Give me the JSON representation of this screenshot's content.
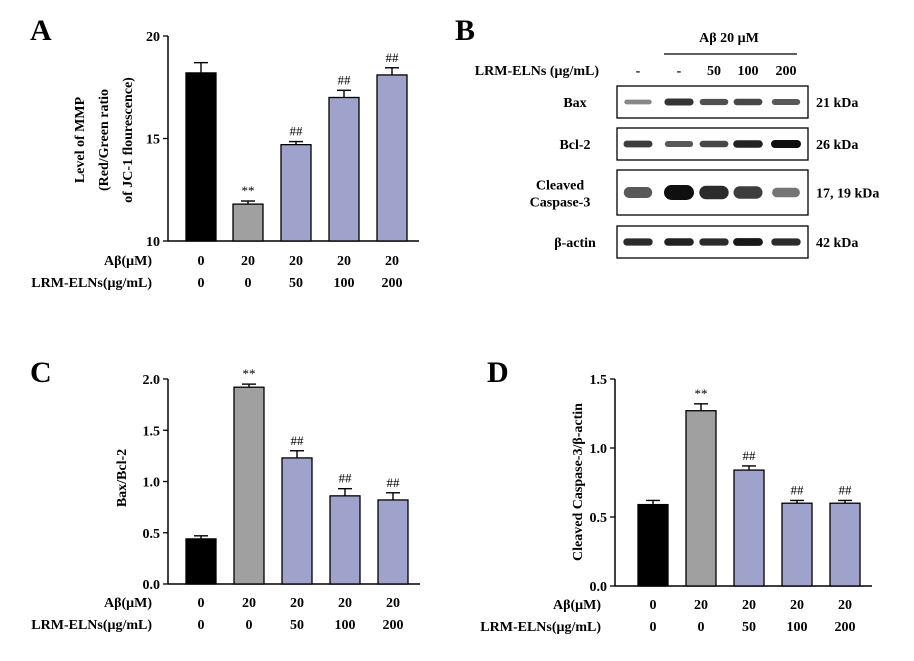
{
  "panels": {
    "A": {
      "letter": "A"
    },
    "B": {
      "letter": "B"
    },
    "C": {
      "letter": "C"
    },
    "D": {
      "letter": "D"
    }
  },
  "colors": {
    "control": "#000000",
    "abeta": "#a0a0a0",
    "treated": "#9fa3cc"
  },
  "row_labels": {
    "abeta": "Aβ(μM)",
    "elns": "LRM-ELNs(μg/mL)"
  },
  "blot": {
    "header": "Aβ 20 μM",
    "row_label": "LRM-ELNs (μg/mL)",
    "lanes": [
      "-",
      "-",
      "50",
      "100",
      "200"
    ],
    "rows": [
      {
        "name": "Bax",
        "size": "21 kDa",
        "intensity": [
          0.35,
          0.8,
          0.65,
          0.7,
          0.6
        ]
      },
      {
        "name": "Bcl-2",
        "size": "26 kDa",
        "intensity": [
          0.75,
          0.6,
          0.7,
          0.9,
          1.0
        ]
      },
      {
        "name": "Cleaved Caspase-3",
        "name_lines": [
          "Cleaved",
          "Caspase-3"
        ],
        "size": "17, 19 kDa",
        "intensity": [
          0.6,
          1.0,
          0.85,
          0.75,
          0.45
        ]
      },
      {
        "name": "β-actin",
        "size": "42 kDa",
        "intensity": [
          0.85,
          0.9,
          0.85,
          0.95,
          0.85
        ]
      }
    ]
  },
  "chart_data": [
    {
      "panel": "A",
      "type": "bar",
      "ylabel_lines": [
        "Level of MMP",
        "(Red/Green ratio",
        "of JC-1 flourescence)"
      ],
      "ylim": [
        10,
        20
      ],
      "yticks": [
        10,
        15,
        20
      ],
      "abeta": [
        "0",
        "20",
        "20",
        "20",
        "20"
      ],
      "elns": [
        "0",
        "0",
        "50",
        "100",
        "200"
      ],
      "values": [
        18.2,
        11.8,
        14.7,
        17.0,
        18.1
      ],
      "errors": [
        0.5,
        0.15,
        0.15,
        0.35,
        0.35
      ],
      "annotations": [
        "",
        "**",
        "##",
        "##",
        "##"
      ]
    },
    {
      "panel": "C",
      "type": "bar",
      "ylabel": "Bax/Bcl-2",
      "ylim": [
        0,
        2.0
      ],
      "yticks": [
        0.0,
        0.5,
        1.0,
        1.5,
        2.0
      ],
      "abeta": [
        "0",
        "20",
        "20",
        "20",
        "20"
      ],
      "elns": [
        "0",
        "0",
        "50",
        "100",
        "200"
      ],
      "values": [
        0.44,
        1.92,
        1.23,
        0.86,
        0.82
      ],
      "errors": [
        0.03,
        0.03,
        0.07,
        0.07,
        0.07
      ],
      "annotations": [
        "",
        "**",
        "##",
        "##",
        "##"
      ]
    },
    {
      "panel": "D",
      "type": "bar",
      "ylabel": "Cleaved Caspase-3/β-actin",
      "ylim": [
        0,
        1.5
      ],
      "yticks": [
        0.0,
        0.5,
        1.0,
        1.5
      ],
      "abeta": [
        "0",
        "20",
        "20",
        "20",
        "20"
      ],
      "elns": [
        "0",
        "0",
        "50",
        "100",
        "200"
      ],
      "values": [
        0.59,
        1.27,
        0.84,
        0.6,
        0.6
      ],
      "errors": [
        0.03,
        0.05,
        0.03,
        0.02,
        0.02
      ],
      "annotations": [
        "",
        "**",
        "##",
        "##",
        "##"
      ]
    }
  ]
}
